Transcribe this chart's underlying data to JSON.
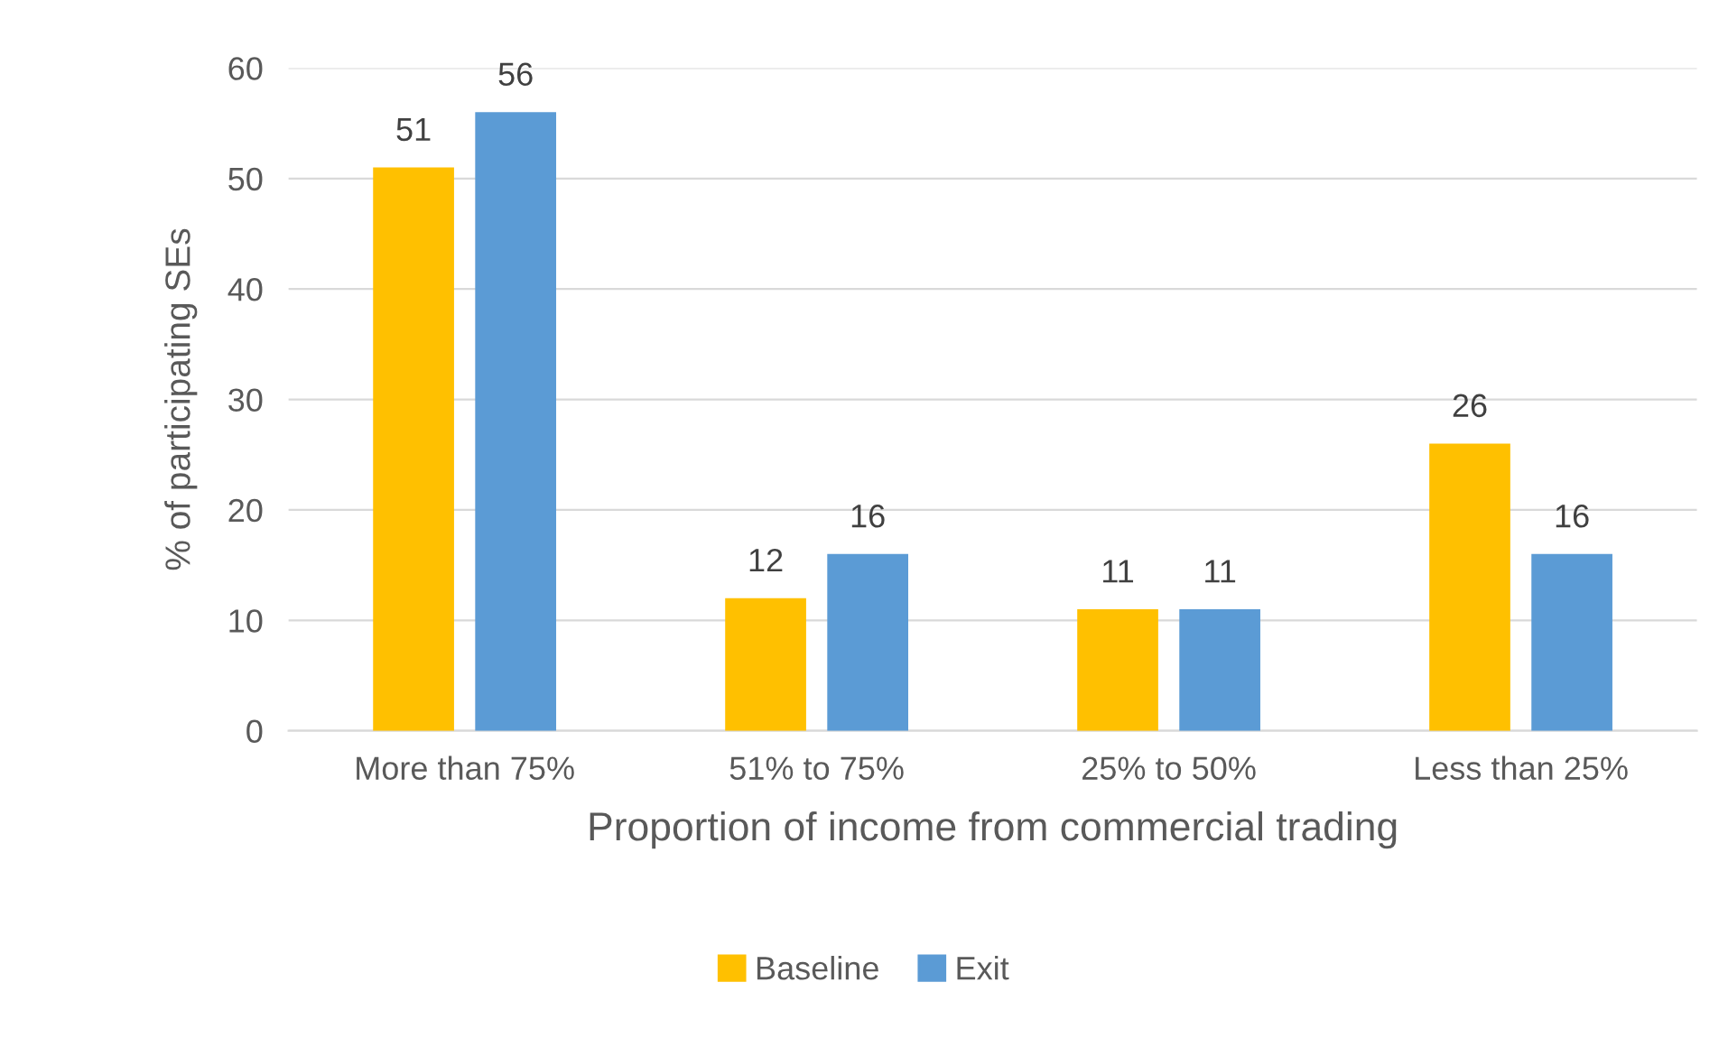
{
  "chart_data": {
    "type": "bar",
    "xlabel": "Proportion of income from commercial trading",
    "ylabel": "% of participating SEs",
    "categories": [
      "More than 75%",
      "51% to 75%",
      "25% to 50%",
      "Less than 25%"
    ],
    "series": [
      {
        "name": "Baseline",
        "color": "#ffc000",
        "values": [
          51,
          12,
          11,
          26
        ]
      },
      {
        "name": "Exit",
        "color": "#5b9bd5",
        "values": [
          56,
          16,
          11,
          16
        ]
      }
    ],
    "ylim": [
      0,
      60
    ],
    "yticks": [
      0,
      10,
      20,
      30,
      40,
      50,
      60
    ],
    "grid": "y",
    "legend": "bottom",
    "data_labels": true
  }
}
